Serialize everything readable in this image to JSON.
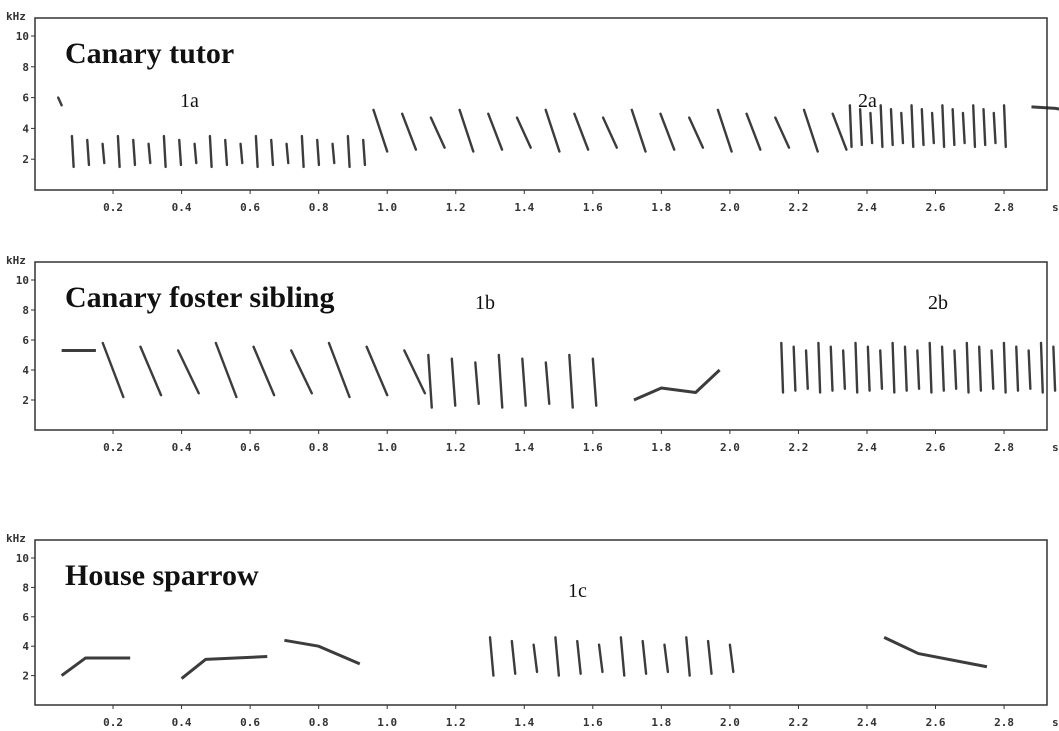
{
  "panels": [
    {
      "title": "Canary tutor",
      "annotations": [
        "1a",
        "2a"
      ]
    },
    {
      "title": "Canary foster sibling",
      "annotations": [
        "1b",
        "2b"
      ]
    },
    {
      "title": "House sparrow",
      "annotations": [
        "1c"
      ]
    }
  ],
  "axis": {
    "y_unit": "kHz",
    "x_unit": "s",
    "yticks": [
      "10",
      "8",
      "6",
      "4",
      "2"
    ],
    "xticks": [
      "0.2",
      "0.4",
      "0.6",
      "0.8",
      "1.0",
      "1.2",
      "1.4",
      "1.6",
      "1.8",
      "2.0",
      "2.2",
      "2.4",
      "2.6",
      "2.8"
    ]
  }
}
